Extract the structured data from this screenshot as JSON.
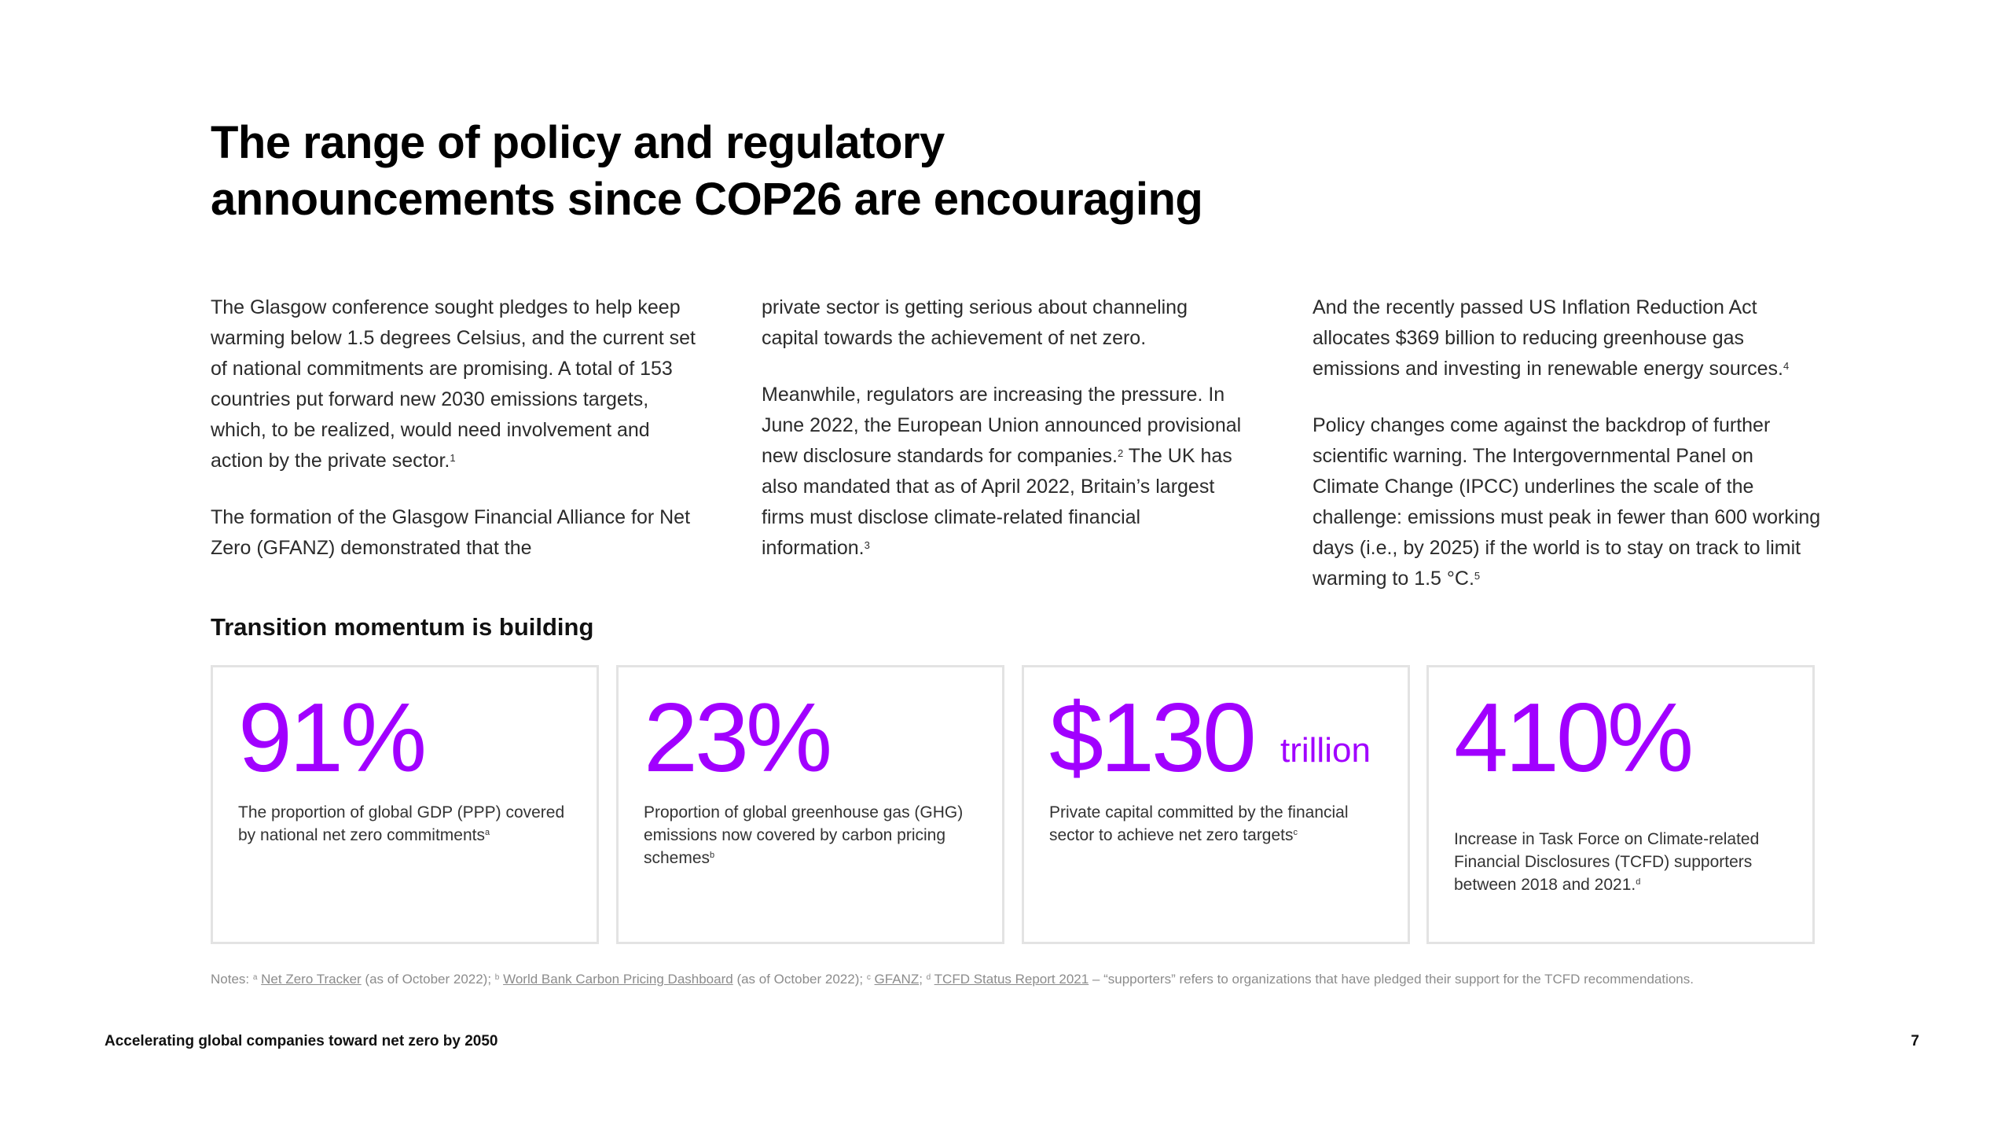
{
  "title": {
    "line1": "The range of policy and regulatory",
    "line2": "announcements since COP26 are encouraging"
  },
  "columns": {
    "col1": {
      "p1": "The Glasgow conference sought pledges to help keep warming below 1.5 degrees Celsius, and the current set of national commitments are promising. A total of 153 countries put forward new 2030 emissions targets, which, to be realized, would need involvement and action by the private sector.",
      "p1_ref": "1",
      "p2": "The formation of the Glasgow Financial Alliance for Net Zero (GFANZ) demonstrated that the"
    },
    "col2": {
      "p1": "private sector is getting serious about channeling capital towards the achievement of net zero.",
      "p2a": "Meanwhile, regulators are increasing the pressure. In June 2022, the European Union announced provisional new disclosure standards for companies.",
      "p2a_ref": "2",
      "p2b": " The UK has also mandated that as of April 2022, Britain’s largest firms must disclose climate-related financial information.",
      "p2b_ref": "3"
    },
    "col3": {
      "p1": "And the recently passed US Inflation Reduction Act allocates $369 billion to reducing greenhouse gas emissions and investing in renewable energy sources.",
      "p1_ref": "4",
      "p2": "Policy changes come against the backdrop of further scientific warning. The Intergovernmental Panel on Climate Change (IPCC) underlines the scale of the challenge: emissions must peak in fewer than 600 working days (i.e., by 2025) if the world is to stay on track to limit warming to 1.5 °C.",
      "p2_ref": "5"
    }
  },
  "section_heading": "Transition momentum is building",
  "stats": [
    {
      "value": "91%",
      "unit": "",
      "desc": "The proportion of global GDP (PPP) covered by national net zero commitments",
      "ref": "a"
    },
    {
      "value": "23%",
      "unit": "",
      "desc": "Proportion of global greenhouse gas (GHG) emissions now covered by carbon pricing schemes",
      "ref": "b"
    },
    {
      "value": "$130",
      "unit": "trillion",
      "desc": "Private capital committed by the financial sector to achieve net zero targets",
      "ref": "c"
    },
    {
      "value": "410%",
      "unit": "",
      "desc": "Increase in Task Force on Climate-related Financial Disclosures (TCFD) supporters between 2018 and 2021.",
      "ref": "d"
    }
  ],
  "notes": {
    "prefix": "Notes: ",
    "ref_a": "a",
    "link_a": "Net Zero Tracker",
    "text_a": " (as of October 2022); ",
    "ref_b": "b",
    "link_b": "World Bank Carbon Pricing Dashboard",
    "text_b": " (as of October 2022); ",
    "ref_c": "c",
    "link_c": "GFANZ",
    "text_c": "; ",
    "ref_d": "d",
    "link_d": "TCFD Status Report 2021",
    "text_d": " – “supporters” refers to organizations that have pledged their support for the TCFD recommendations."
  },
  "footer": {
    "left": "Accelerating global companies toward net zero by 2050",
    "page_number": "7"
  },
  "colors": {
    "accent": "#a100ff",
    "card_border": "#e3e3e3",
    "notes_text": "#8c8c8c"
  }
}
